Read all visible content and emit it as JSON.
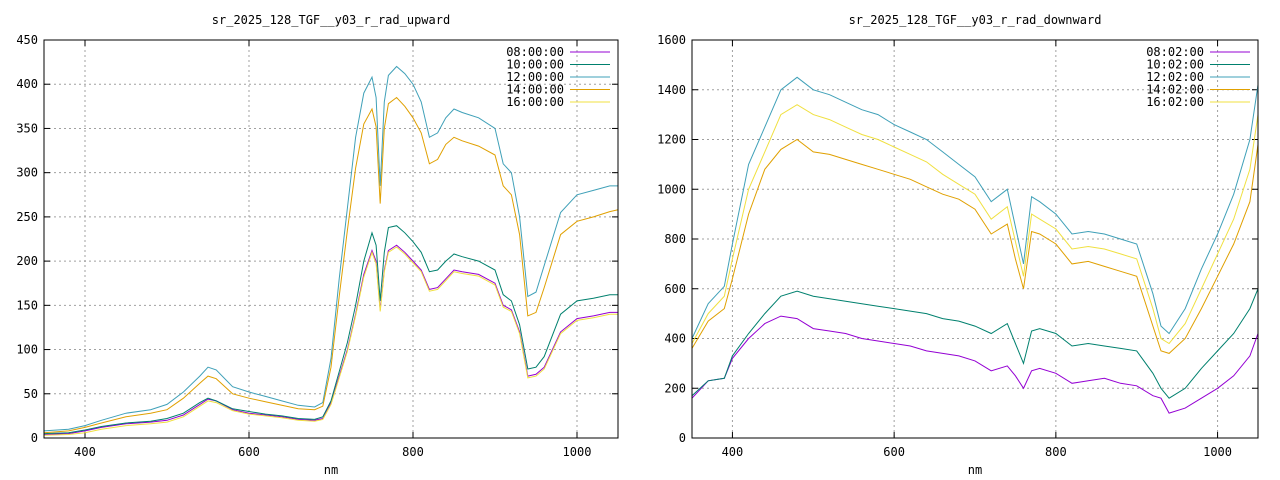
{
  "chart_data": [
    {
      "type": "line",
      "title": "sr_2025_128_TGF__y03_r_rad_upward",
      "xlabel": "nm",
      "ylabel": "",
      "xlim": [
        350,
        1050
      ],
      "ylim": [
        0,
        450
      ],
      "xticks": [
        "400",
        "600",
        "800",
        "1000"
      ],
      "yticks": [
        "0",
        "50",
        "100",
        "150",
        "200",
        "250",
        "300",
        "350",
        "400",
        "450"
      ],
      "grid": true,
      "legend_position": "top-right",
      "x": [
        350,
        380,
        400,
        420,
        450,
        480,
        500,
        520,
        540,
        550,
        560,
        580,
        600,
        620,
        640,
        660,
        680,
        690,
        700,
        710,
        720,
        730,
        740,
        750,
        755,
        760,
        765,
        770,
        780,
        790,
        800,
        810,
        820,
        830,
        840,
        850,
        860,
        880,
        900,
        910,
        920,
        930,
        940,
        950,
        960,
        980,
        1000,
        1020,
        1040,
        1050
      ],
      "series": [
        {
          "name": "08:00:00",
          "color": "#9400d3",
          "values": [
            4,
            5,
            8,
            12,
            16,
            18,
            20,
            26,
            38,
            44,
            42,
            32,
            28,
            26,
            24,
            21,
            20,
            22,
            40,
            70,
            100,
            140,
            185,
            212,
            200,
            145,
            190,
            212,
            218,
            210,
            200,
            190,
            168,
            170,
            180,
            190,
            188,
            185,
            175,
            150,
            145,
            120,
            70,
            72,
            80,
            120,
            135,
            138,
            142,
            142
          ]
        },
        {
          "name": "10:00:00",
          "color": "#00806e",
          "values": [
            5,
            6,
            9,
            13,
            17,
            19,
            22,
            28,
            40,
            45,
            42,
            33,
            30,
            27,
            25,
            22,
            21,
            24,
            42,
            75,
            108,
            150,
            200,
            232,
            218,
            155,
            210,
            238,
            240,
            232,
            222,
            210,
            188,
            190,
            200,
            208,
            205,
            200,
            190,
            162,
            155,
            128,
            78,
            80,
            92,
            140,
            155,
            158,
            162,
            162
          ]
        },
        {
          "name": "12:00:00",
          "color": "#3fa0b8",
          "values": [
            8,
            10,
            14,
            20,
            28,
            32,
            38,
            52,
            70,
            80,
            77,
            58,
            52,
            47,
            42,
            37,
            35,
            40,
            90,
            180,
            260,
            340,
            390,
            408,
            385,
            285,
            380,
            410,
            420,
            412,
            400,
            380,
            340,
            345,
            362,
            372,
            368,
            362,
            350,
            310,
            300,
            250,
            160,
            165,
            195,
            255,
            275,
            280,
            285,
            285
          ]
        },
        {
          "name": "14:00:00",
          "color": "#e0a000",
          "values": [
            6,
            8,
            12,
            17,
            24,
            28,
            32,
            45,
            62,
            70,
            67,
            50,
            45,
            41,
            37,
            33,
            32,
            36,
            80,
            160,
            235,
            305,
            355,
            372,
            352,
            265,
            350,
            378,
            385,
            375,
            362,
            345,
            310,
            315,
            332,
            340,
            336,
            330,
            320,
            285,
            275,
            230,
            138,
            142,
            170,
            230,
            245,
            250,
            256,
            258
          ]
        },
        {
          "name": "16:00:00",
          "color": "#f0e040",
          "values": [
            3,
            4,
            6,
            10,
            14,
            16,
            18,
            24,
            36,
            42,
            40,
            31,
            27,
            25,
            23,
            20,
            19,
            21,
            38,
            68,
            98,
            138,
            182,
            210,
            197,
            143,
            188,
            210,
            216,
            208,
            198,
            188,
            166,
            168,
            178,
            188,
            186,
            183,
            173,
            148,
            143,
            118,
            68,
            70,
            78,
            118,
            133,
            136,
            140,
            140
          ]
        }
      ]
    },
    {
      "type": "line",
      "title": "sr_2025_128_TGF__y03_r_rad_downward",
      "xlabel": "nm",
      "ylabel": "",
      "xlim": [
        350,
        1050
      ],
      "ylim": [
        0,
        1600
      ],
      "xticks": [
        "400",
        "600",
        "800",
        "1000"
      ],
      "yticks": [
        "0",
        "200",
        "400",
        "600",
        "800",
        "1000",
        "1200",
        "1400",
        "1600"
      ],
      "grid": true,
      "legend_position": "top-right",
      "x": [
        350,
        370,
        390,
        400,
        420,
        440,
        460,
        480,
        500,
        520,
        540,
        560,
        580,
        600,
        620,
        640,
        660,
        680,
        700,
        720,
        740,
        750,
        760,
        770,
        780,
        800,
        820,
        840,
        860,
        880,
        900,
        920,
        930,
        940,
        960,
        980,
        1000,
        1020,
        1040,
        1050
      ],
      "series": [
        {
          "name": "08:02:00",
          "color": "#9400d3",
          "values": [
            160,
            230,
            240,
            320,
            400,
            460,
            490,
            480,
            440,
            430,
            420,
            400,
            390,
            380,
            370,
            350,
            340,
            330,
            310,
            270,
            290,
            250,
            200,
            270,
            280,
            260,
            220,
            230,
            240,
            220,
            210,
            170,
            160,
            100,
            120,
            160,
            200,
            250,
            330,
            420
          ]
        },
        {
          "name": "10:02:00",
          "color": "#00806e",
          "values": [
            170,
            230,
            240,
            330,
            420,
            500,
            570,
            590,
            570,
            560,
            550,
            540,
            530,
            520,
            510,
            500,
            480,
            470,
            450,
            420,
            460,
            380,
            300,
            430,
            440,
            420,
            370,
            380,
            370,
            360,
            350,
            260,
            200,
            160,
            200,
            280,
            350,
            420,
            520,
            600
          ]
        },
        {
          "name": "12:02:00",
          "color": "#3fa0b8",
          "values": [
            400,
            540,
            610,
            780,
            1100,
            1250,
            1400,
            1450,
            1400,
            1380,
            1350,
            1320,
            1300,
            1260,
            1230,
            1200,
            1150,
            1100,
            1050,
            950,
            1000,
            850,
            700,
            970,
            950,
            900,
            820,
            830,
            820,
            800,
            780,
            580,
            450,
            420,
            520,
            680,
            820,
            980,
            1200,
            1420
          ]
        },
        {
          "name": "14:02:00",
          "color": "#e0a000",
          "values": [
            360,
            470,
            520,
            640,
            900,
            1080,
            1160,
            1200,
            1150,
            1140,
            1120,
            1100,
            1080,
            1060,
            1040,
            1010,
            980,
            960,
            920,
            820,
            860,
            720,
            600,
            830,
            820,
            780,
            700,
            710,
            690,
            670,
            650,
            450,
            350,
            340,
            400,
            520,
            650,
            780,
            950,
            1180
          ]
        },
        {
          "name": "16:02:00",
          "color": "#f0e040",
          "values": [
            380,
            500,
            570,
            720,
            1000,
            1150,
            1300,
            1340,
            1300,
            1280,
            1250,
            1220,
            1200,
            1170,
            1140,
            1110,
            1060,
            1020,
            980,
            880,
            930,
            790,
            650,
            900,
            880,
            840,
            760,
            770,
            760,
            740,
            720,
            520,
            400,
            380,
            460,
            600,
            740,
            880,
            1080,
            1300
          ]
        }
      ]
    }
  ]
}
